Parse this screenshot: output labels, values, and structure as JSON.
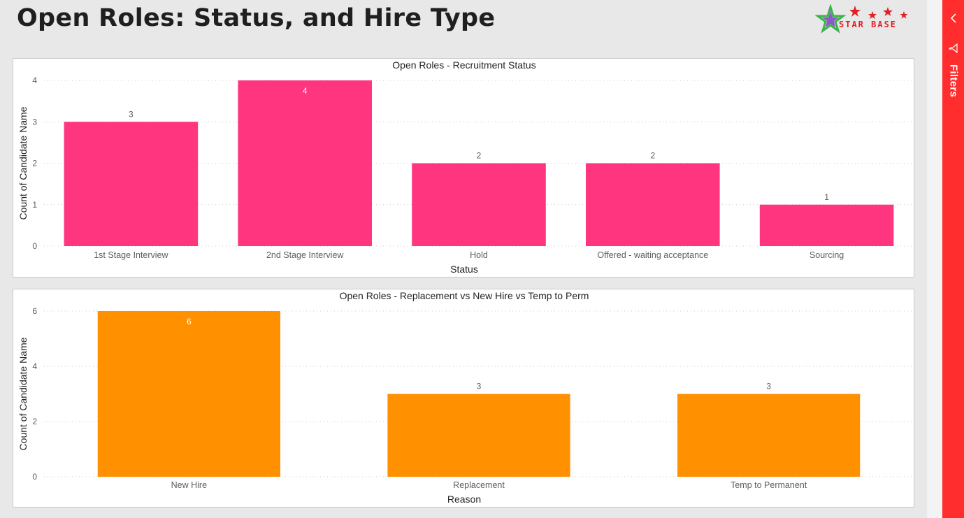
{
  "report": {
    "title": "Open Roles: Status, and Hire Type",
    "logo_text": "STAR BASE"
  },
  "filters_pane": {
    "label": "Filters",
    "color": "#ff2d2d"
  },
  "chart_data": [
    {
      "type": "bar",
      "title": "Open Roles - Recruitment Status",
      "xlabel": "Status",
      "ylabel": "Count of Candidate Name",
      "categories": [
        "1st Stage Interview",
        "2nd Stage Interview",
        "Hold",
        "Offered - waiting acceptance",
        "Sourcing"
      ],
      "values": [
        3,
        4,
        2,
        2,
        1
      ],
      "ylim": [
        0,
        4
      ],
      "yticks": [
        0,
        1,
        2,
        3,
        4
      ],
      "color": "#ff3580",
      "grid": true,
      "data_labels": true
    },
    {
      "type": "bar",
      "title": "Open Roles - Replacement vs New Hire vs Temp to Perm",
      "xlabel": "Reason",
      "ylabel": "Count of Candidate Name",
      "categories": [
        "New Hire",
        "Replacement",
        "Temp to Permanent"
      ],
      "values": [
        6,
        3,
        3
      ],
      "ylim": [
        0,
        6
      ],
      "yticks": [
        0,
        2,
        4,
        6
      ],
      "color": "#ff9000",
      "grid": true,
      "data_labels": true
    }
  ]
}
